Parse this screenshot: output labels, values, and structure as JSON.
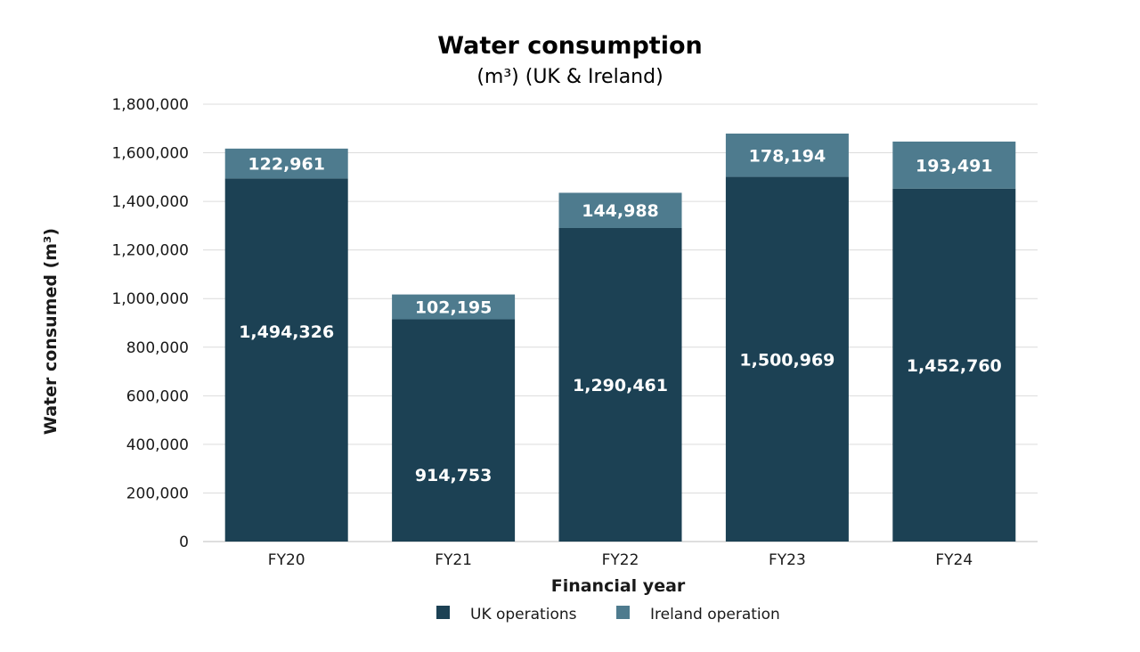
{
  "chart_data": {
    "type": "bar",
    "stacked": true,
    "title": "Water consumption",
    "subtitle": "(m³) (UK & Ireland)",
    "xlabel": "Financial year",
    "ylabel": "Water consumed (m³)",
    "ylim": [
      0,
      1800000
    ],
    "yticks": [
      0,
      200000,
      400000,
      600000,
      800000,
      1000000,
      1200000,
      1400000,
      1600000,
      1800000
    ],
    "ytick_labels": [
      "0",
      "200,000",
      "400,000",
      "600,000",
      "800,000",
      "1,000,000",
      "1,200,000",
      "1,400,000",
      "1,600,000",
      "1,800,000"
    ],
    "grid": true,
    "legend_position": "bottom",
    "categories": [
      "FY20",
      "FY21",
      "FY22",
      "FY23",
      "FY24"
    ],
    "series": [
      {
        "name": "UK operations",
        "color": "#1c4154",
        "values": [
          1494326,
          914753,
          1290461,
          1500969,
          1452760
        ],
        "labels": [
          "1,494,326",
          "914,753",
          "1,290,461",
          "1,500,969",
          "1,452,760"
        ]
      },
      {
        "name": "Ireland operation",
        "color": "#4e7b8e",
        "values": [
          122961,
          102195,
          144988,
          178194,
          193491
        ],
        "labels": [
          "122,961",
          "102,195",
          "144,988",
          "178,194",
          "193,491"
        ]
      }
    ]
  }
}
